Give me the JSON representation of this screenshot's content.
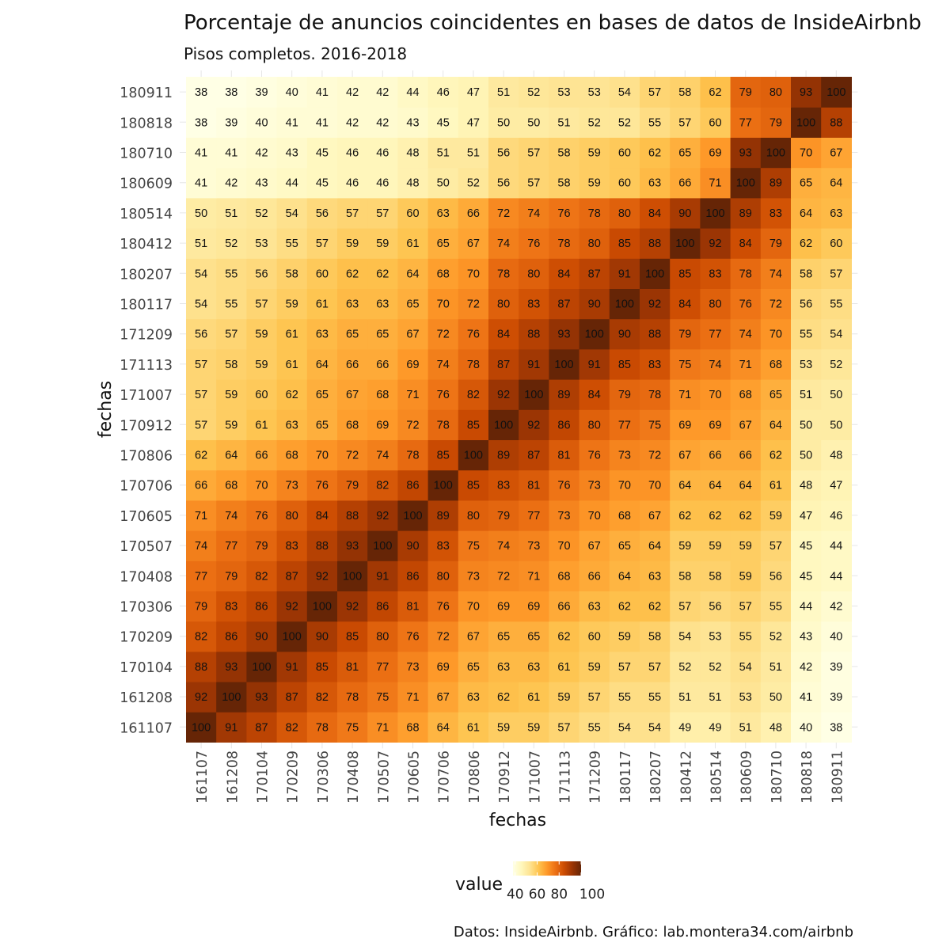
{
  "chart_data": {
    "type": "heatmap",
    "title": "Porcentaje de anuncios coincidentes en bases de datos de InsideAirbnb",
    "subtitle": "Pisos completos. 2016-2018",
    "xlabel": "fechas",
    "ylabel": "fechas",
    "caption": "Datos: InsideAirbnb. Gráfico: lab.montera34.com/airbnb",
    "x": [
      "161107",
      "161208",
      "170104",
      "170209",
      "170306",
      "170408",
      "170507",
      "170605",
      "170706",
      "170806",
      "170912",
      "171007",
      "171113",
      "171209",
      "180117",
      "180207",
      "180412",
      "180514",
      "180609",
      "180710",
      "180818",
      "180911"
    ],
    "y": [
      "161107",
      "161208",
      "170104",
      "170209",
      "170306",
      "170408",
      "170507",
      "170605",
      "170706",
      "170806",
      "170912",
      "171007",
      "171113",
      "171209",
      "180117",
      "180207",
      "180412",
      "180514",
      "180609",
      "180710",
      "180818",
      "180911"
    ],
    "values": [
      [
        100,
        91,
        87,
        82,
        78,
        75,
        71,
        68,
        64,
        61,
        59,
        59,
        57,
        55,
        54,
        54,
        49,
        49,
        51,
        48,
        40,
        38
      ],
      [
        92,
        100,
        93,
        87,
        82,
        78,
        75,
        71,
        67,
        63,
        62,
        61,
        59,
        57,
        55,
        55,
        51,
        51,
        53,
        50,
        41,
        39
      ],
      [
        88,
        93,
        100,
        91,
        85,
        81,
        77,
        73,
        69,
        65,
        63,
        63,
        61,
        59,
        57,
        57,
        52,
        52,
        54,
        51,
        42,
        39
      ],
      [
        82,
        86,
        90,
        100,
        90,
        85,
        80,
        76,
        72,
        67,
        65,
        65,
        62,
        60,
        59,
        58,
        54,
        53,
        55,
        52,
        43,
        40
      ],
      [
        79,
        83,
        86,
        92,
        100,
        92,
        86,
        81,
        76,
        70,
        69,
        69,
        66,
        63,
        62,
        62,
        57,
        56,
        57,
        55,
        44,
        42
      ],
      [
        77,
        79,
        82,
        87,
        92,
        100,
        91,
        86,
        80,
        73,
        72,
        71,
        68,
        66,
        64,
        63,
        58,
        58,
        59,
        56,
        45,
        44
      ],
      [
        74,
        77,
        79,
        83,
        88,
        93,
        100,
        90,
        83,
        75,
        74,
        73,
        70,
        67,
        65,
        64,
        59,
        59,
        59,
        57,
        45,
        44
      ],
      [
        71,
        74,
        76,
        80,
        84,
        88,
        92,
        100,
        89,
        80,
        79,
        77,
        73,
        70,
        68,
        67,
        62,
        62,
        62,
        59,
        47,
        46
      ],
      [
        66,
        68,
        70,
        73,
        76,
        79,
        82,
        86,
        100,
        85,
        83,
        81,
        76,
        73,
        70,
        70,
        64,
        64,
        64,
        61,
        48,
        47
      ],
      [
        62,
        64,
        66,
        68,
        70,
        72,
        74,
        78,
        85,
        100,
        89,
        87,
        81,
        76,
        73,
        72,
        67,
        66,
        66,
        62,
        50,
        48
      ],
      [
        57,
        59,
        61,
        63,
        65,
        68,
        69,
        72,
        78,
        85,
        100,
        92,
        86,
        80,
        77,
        75,
        69,
        69,
        67,
        64,
        50,
        50
      ],
      [
        57,
        59,
        60,
        62,
        65,
        67,
        68,
        71,
        76,
        82,
        92,
        100,
        89,
        84,
        79,
        78,
        71,
        70,
        68,
        65,
        51,
        50
      ],
      [
        57,
        58,
        59,
        61,
        64,
        66,
        66,
        69,
        74,
        78,
        87,
        91,
        100,
        91,
        85,
        83,
        75,
        74,
        71,
        68,
        53,
        52
      ],
      [
        56,
        57,
        59,
        61,
        63,
        65,
        65,
        67,
        72,
        76,
        84,
        88,
        93,
        100,
        90,
        88,
        79,
        77,
        74,
        70,
        55,
        54
      ],
      [
        54,
        55,
        57,
        59,
        61,
        63,
        63,
        65,
        70,
        72,
        80,
        83,
        87,
        90,
        100,
        92,
        84,
        80,
        76,
        72,
        56,
        55
      ],
      [
        54,
        55,
        56,
        58,
        60,
        62,
        62,
        64,
        68,
        70,
        78,
        80,
        84,
        87,
        91,
        100,
        85,
        83,
        78,
        74,
        58,
        57
      ],
      [
        51,
        52,
        53,
        55,
        57,
        59,
        59,
        61,
        65,
        67,
        74,
        76,
        78,
        80,
        85,
        88,
        100,
        92,
        84,
        79,
        62,
        60
      ],
      [
        50,
        51,
        52,
        54,
        56,
        57,
        57,
        60,
        63,
        66,
        72,
        74,
        76,
        78,
        80,
        84,
        90,
        100,
        89,
        83,
        64,
        63
      ],
      [
        41,
        42,
        43,
        44,
        45,
        46,
        46,
        48,
        50,
        52,
        56,
        57,
        58,
        59,
        60,
        63,
        66,
        71,
        100,
        89,
        65,
        64
      ],
      [
        41,
        41,
        42,
        43,
        45,
        46,
        46,
        48,
        51,
        51,
        56,
        57,
        58,
        59,
        60,
        62,
        65,
        69,
        93,
        100,
        70,
        67
      ],
      [
        38,
        39,
        40,
        41,
        41,
        42,
        42,
        43,
        45,
        47,
        50,
        50,
        51,
        52,
        52,
        55,
        57,
        60,
        77,
        79,
        100,
        88
      ],
      [
        38,
        38,
        39,
        40,
        41,
        42,
        42,
        44,
        46,
        47,
        51,
        52,
        53,
        53,
        54,
        57,
        58,
        62,
        79,
        80,
        93,
        100
      ]
    ],
    "legend": {
      "title": "value",
      "ticks": [
        40,
        60,
        80,
        100
      ],
      "range": [
        38,
        100
      ],
      "placement": "bottom"
    },
    "colors": [
      "#ffffe5",
      "#fff7bc",
      "#fee391",
      "#fec44f",
      "#fe9929",
      "#ec7014",
      "#cc4c02",
      "#993404",
      "#662506"
    ],
    "grid": true
  }
}
